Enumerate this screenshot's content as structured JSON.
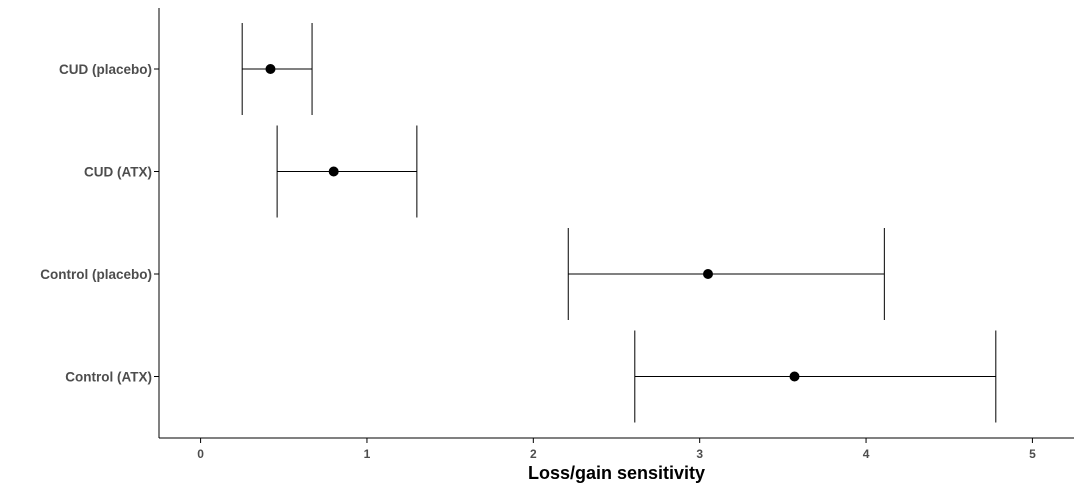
{
  "chart_data": {
    "type": "errorbar",
    "title": "",
    "xlabel": "Loss/gain sensitivity",
    "ylabel": "",
    "xlim": [
      -0.25,
      5.25
    ],
    "x_ticks": [
      0,
      1,
      2,
      3,
      4,
      5
    ],
    "x_tick_labels": [
      "0",
      "1",
      "2",
      "3",
      "4",
      "5"
    ],
    "categories": [
      "CUD (placebo)",
      "CUD (ATX)",
      "Control (placebo)",
      "Control (ATX)"
    ],
    "estimates": [
      0.42,
      0.8,
      3.05,
      3.57
    ],
    "lower": [
      0.25,
      0.46,
      2.21,
      2.61
    ],
    "upper": [
      0.67,
      1.3,
      4.11,
      4.78
    ],
    "grid": false,
    "legend": "none",
    "colors": {
      "point": "#000000",
      "errorbar": "#000000",
      "axis": "#000000",
      "labels": "#4d4d4d"
    }
  }
}
